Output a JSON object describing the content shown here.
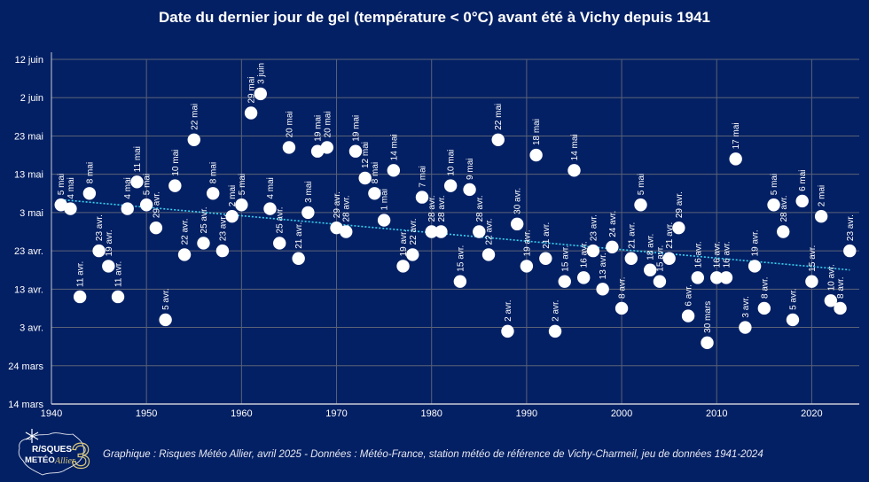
{
  "title": "Date du dernier jour de gel (température < 0°C) avant été à Vichy depuis 1941",
  "footer": "Graphique : Risques Météo Allier, avril 2025 - Données : Météo-France, station météo de référence de Vichy-Charmeil, jeu de données 1941-2024",
  "logo": {
    "line1": "R/SQUES",
    "line2": "METÉO",
    "script": "Allier",
    "numeral": "3",
    "icon": "snowflake-icon"
  },
  "colors": {
    "background": "#042064",
    "grid": "#5a6276",
    "points": "#ffffff",
    "trendline": "#38d3f2",
    "axis": "#c8ccd8",
    "logo_accent": "#d8c77a"
  },
  "chart_data": {
    "type": "scatter",
    "title": "Date du dernier jour de gel (température < 0°C) avant été à Vichy depuis 1941",
    "xlabel": "",
    "ylabel": "",
    "xlim": [
      1940,
      2025
    ],
    "x_ticks": [
      1940,
      1950,
      1960,
      1970,
      1980,
      1990,
      2000,
      2010,
      2020
    ],
    "y_ticks_labels": [
      "14 mars",
      "24 mars",
      "3 avr.",
      "13 avr.",
      "23 avr.",
      "3 mai",
      "13 mai",
      "23 mai",
      "2 juin",
      "12 juin"
    ],
    "y_ticks_dayofyear": [
      73,
      83,
      93,
      103,
      113,
      123,
      133,
      143,
      153,
      163
    ],
    "ylim_dayofyear": [
      73,
      163
    ],
    "grid": true,
    "trendline": "linear, dotted",
    "points": [
      {
        "year": 1941,
        "doy": 125,
        "label": "5 mai"
      },
      {
        "year": 1942,
        "doy": 124,
        "label": "4 mai"
      },
      {
        "year": 1943,
        "doy": 101,
        "label": "11 avr."
      },
      {
        "year": 1944,
        "doy": 128,
        "label": "8 mai"
      },
      {
        "year": 1945,
        "doy": 113,
        "label": "23 avr."
      },
      {
        "year": 1946,
        "doy": 109,
        "label": "19 avr."
      },
      {
        "year": 1947,
        "doy": 101,
        "label": "11 avr."
      },
      {
        "year": 1948,
        "doy": 124,
        "label": "4 mai"
      },
      {
        "year": 1949,
        "doy": 131,
        "label": "11 mai"
      },
      {
        "year": 1950,
        "doy": 125,
        "label": "5 mai"
      },
      {
        "year": 1951,
        "doy": 119,
        "label": "29 avr."
      },
      {
        "year": 1952,
        "doy": 95,
        "label": "5 avr."
      },
      {
        "year": 1953,
        "doy": 130,
        "label": "10 mai"
      },
      {
        "year": 1954,
        "doy": 112,
        "label": "22 avr."
      },
      {
        "year": 1955,
        "doy": 142,
        "label": "22 mai"
      },
      {
        "year": 1956,
        "doy": 115,
        "label": "25 avr."
      },
      {
        "year": 1957,
        "doy": 128,
        "label": "8 mai"
      },
      {
        "year": 1958,
        "doy": 113,
        "label": "23 avr."
      },
      {
        "year": 1959,
        "doy": 122,
        "label": "2 mai"
      },
      {
        "year": 1960,
        "doy": 125,
        "label": "5 mai"
      },
      {
        "year": 1961,
        "doy": 149,
        "label": "29 mai"
      },
      {
        "year": 1962,
        "doy": 154,
        "label": "3 juin"
      },
      {
        "year": 1963,
        "doy": 124,
        "label": "4 mai"
      },
      {
        "year": 1964,
        "doy": 115,
        "label": "25 avr."
      },
      {
        "year": 1965,
        "doy": 140,
        "label": "20 mai"
      },
      {
        "year": 1966,
        "doy": 111,
        "label": "21 avr."
      },
      {
        "year": 1967,
        "doy": 123,
        "label": "3 mai"
      },
      {
        "year": 1968,
        "doy": 139,
        "label": "19 mai"
      },
      {
        "year": 1969,
        "doy": 140,
        "label": "20 mai"
      },
      {
        "year": 1970,
        "doy": 119,
        "label": "29 avr."
      },
      {
        "year": 1971,
        "doy": 118,
        "label": "28 avr."
      },
      {
        "year": 1972,
        "doy": 139,
        "label": "19 mai"
      },
      {
        "year": 1973,
        "doy": 132,
        "label": "12 mai"
      },
      {
        "year": 1974,
        "doy": 128,
        "label": "8 mai"
      },
      {
        "year": 1975,
        "doy": 121,
        "label": "1 mai"
      },
      {
        "year": 1976,
        "doy": 134,
        "label": "14 mai"
      },
      {
        "year": 1977,
        "doy": 109,
        "label": "19 avr."
      },
      {
        "year": 1978,
        "doy": 112,
        "label": "22 avr."
      },
      {
        "year": 1979,
        "doy": 127,
        "label": "7 mai"
      },
      {
        "year": 1980,
        "doy": 118,
        "label": "28 avr."
      },
      {
        "year": 1981,
        "doy": 118,
        "label": "28 avr."
      },
      {
        "year": 1982,
        "doy": 130,
        "label": "10 mai"
      },
      {
        "year": 1983,
        "doy": 105,
        "label": "15 avr."
      },
      {
        "year": 1984,
        "doy": 129,
        "label": "9 mai"
      },
      {
        "year": 1985,
        "doy": 118,
        "label": "28 avr."
      },
      {
        "year": 1986,
        "doy": 112,
        "label": "22 avr."
      },
      {
        "year": 1987,
        "doy": 142,
        "label": "22 mai"
      },
      {
        "year": 1988,
        "doy": 92,
        "label": "2 avr."
      },
      {
        "year": 1989,
        "doy": 120,
        "label": "30 avr."
      },
      {
        "year": 1990,
        "doy": 109,
        "label": "19 avr."
      },
      {
        "year": 1991,
        "doy": 138,
        "label": "18 mai"
      },
      {
        "year": 1992,
        "doy": 111,
        "label": "21 avr."
      },
      {
        "year": 1993,
        "doy": 92,
        "label": "2 avr."
      },
      {
        "year": 1994,
        "doy": 105,
        "label": "15 avr."
      },
      {
        "year": 1995,
        "doy": 134,
        "label": "14 mai"
      },
      {
        "year": 1996,
        "doy": 106,
        "label": "16 avr."
      },
      {
        "year": 1997,
        "doy": 113,
        "label": "23 avr."
      },
      {
        "year": 1998,
        "doy": 103,
        "label": "13 avr."
      },
      {
        "year": 1999,
        "doy": 114,
        "label": "24 avr."
      },
      {
        "year": 2000,
        "doy": 98,
        "label": "8 avr."
      },
      {
        "year": 2001,
        "doy": 111,
        "label": "21 avr."
      },
      {
        "year": 2002,
        "doy": 125,
        "label": "5 mai"
      },
      {
        "year": 2003,
        "doy": 108,
        "label": "18 avr."
      },
      {
        "year": 2004,
        "doy": 105,
        "label": "15 avr."
      },
      {
        "year": 2005,
        "doy": 111,
        "label": "21 avr."
      },
      {
        "year": 2006,
        "doy": 119,
        "label": "29 avr."
      },
      {
        "year": 2007,
        "doy": 96,
        "label": "6 avr."
      },
      {
        "year": 2008,
        "doy": 106,
        "label": "16 avr."
      },
      {
        "year": 2009,
        "doy": 89,
        "label": "30 mars"
      },
      {
        "year": 2010,
        "doy": 106,
        "label": "16 avr."
      },
      {
        "year": 2011,
        "doy": 106,
        "label": "16 avr."
      },
      {
        "year": 2012,
        "doy": 137,
        "label": "17 mai"
      },
      {
        "year": 2013,
        "doy": 93,
        "label": "3 avr."
      },
      {
        "year": 2014,
        "doy": 109,
        "label": "19 avr."
      },
      {
        "year": 2015,
        "doy": 98,
        "label": "8 avr."
      },
      {
        "year": 2016,
        "doy": 125,
        "label": "5 mai"
      },
      {
        "year": 2017,
        "doy": 118,
        "label": "28 avr."
      },
      {
        "year": 2018,
        "doy": 95,
        "label": "5 avr."
      },
      {
        "year": 2019,
        "doy": 126,
        "label": "6 mai"
      },
      {
        "year": 2020,
        "doy": 105,
        "label": "15 avr."
      },
      {
        "year": 2021,
        "doy": 122,
        "label": "2 mai"
      },
      {
        "year": 2022,
        "doy": 100,
        "label": "10 avr."
      },
      {
        "year": 2023,
        "doy": 98,
        "label": "8 avr."
      },
      {
        "year": 2024,
        "doy": 113,
        "label": "23 avr."
      }
    ]
  }
}
